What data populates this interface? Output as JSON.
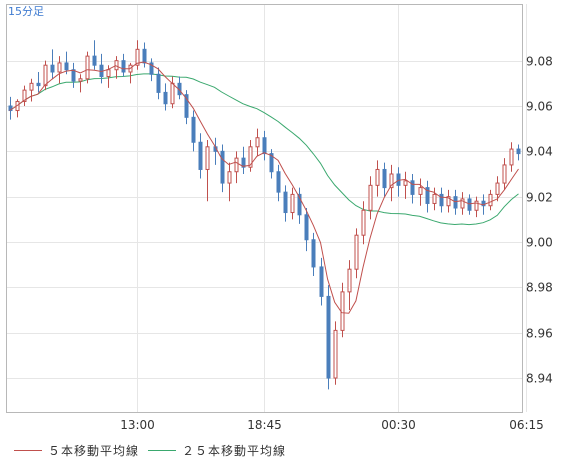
{
  "timeframe_label": "15分足",
  "colors": {
    "grid": "#e6e6e6",
    "frame": "#b8b8b8",
    "text": "#333333",
    "timeframe": "#3f7bd0",
    "up": "#ffffff",
    "up_border": "#c0504d",
    "down": "#4a7ebb",
    "ma5": "#c0504d",
    "ma25": "#3aa86e"
  },
  "chart_data": {
    "type": "candlestick",
    "ylim": [
      8.925,
      9.105
    ],
    "y_ticks": [
      "9.08",
      "9.06",
      "9.04",
      "9.02",
      "9.00",
      "8.98",
      "8.96",
      "8.94"
    ],
    "x_ticks": [
      {
        "label": "13:00",
        "index": 18
      },
      {
        "label": "18:45",
        "index": 36
      },
      {
        "label": "00:30",
        "index": 55
      },
      {
        "label": "06:15",
        "index": 73
      }
    ],
    "candles": [
      [
        9.06,
        9.064,
        9.054,
        9.058
      ],
      [
        9.058,
        9.063,
        9.055,
        9.062
      ],
      [
        9.062,
        9.069,
        9.06,
        9.067
      ],
      [
        9.067,
        9.072,
        9.062,
        9.07
      ],
      [
        9.07,
        9.075,
        9.066,
        9.069
      ],
      [
        9.069,
        9.08,
        9.067,
        9.078
      ],
      [
        9.078,
        9.085,
        9.072,
        9.075
      ],
      [
        9.075,
        9.082,
        9.07,
        9.079
      ],
      [
        9.079,
        9.084,
        9.074,
        9.076
      ],
      [
        9.076,
        9.079,
        9.068,
        9.071
      ],
      [
        9.071,
        9.074,
        9.066,
        9.072
      ],
      [
        9.072,
        9.084,
        9.07,
        9.082
      ],
      [
        9.082,
        9.089,
        9.076,
        9.078
      ],
      [
        9.078,
        9.083,
        9.07,
        9.073
      ],
      [
        9.073,
        9.078,
        9.068,
        9.076
      ],
      [
        9.076,
        9.082,
        9.072,
        9.08
      ],
      [
        9.08,
        9.083,
        9.073,
        9.075
      ],
      [
        9.075,
        9.079,
        9.07,
        9.078
      ],
      [
        9.078,
        9.089,
        9.076,
        9.085
      ],
      [
        9.085,
        9.088,
        9.077,
        9.079
      ],
      [
        9.079,
        9.081,
        9.071,
        9.074
      ],
      [
        9.074,
        9.077,
        9.063,
        9.066
      ],
      [
        9.066,
        9.07,
        9.058,
        9.061
      ],
      [
        9.061,
        9.073,
        9.059,
        9.07
      ],
      [
        9.07,
        9.073,
        9.063,
        9.065
      ],
      [
        9.065,
        9.067,
        9.052,
        9.055
      ],
      [
        9.055,
        9.058,
        9.04,
        9.044
      ],
      [
        9.044,
        9.048,
        9.028,
        9.032
      ],
      [
        9.032,
        9.045,
        9.018,
        9.042
      ],
      [
        9.042,
        9.046,
        9.034,
        9.04
      ],
      [
        9.04,
        9.043,
        9.022,
        9.026
      ],
      [
        9.026,
        9.035,
        9.018,
        9.031
      ],
      [
        9.031,
        9.04,
        9.026,
        9.037
      ],
      [
        9.037,
        9.042,
        9.03,
        9.033
      ],
      [
        9.033,
        9.045,
        9.031,
        9.042
      ],
      [
        9.042,
        9.05,
        9.038,
        9.046
      ],
      [
        9.046,
        9.049,
        9.036,
        9.039
      ],
      [
        9.039,
        9.041,
        9.028,
        9.031
      ],
      [
        9.031,
        9.034,
        9.018,
        9.022
      ],
      [
        9.022,
        9.025,
        9.009,
        9.013
      ],
      [
        9.013,
        9.024,
        9.01,
        9.021
      ],
      [
        9.021,
        9.024,
        9.008,
        9.012
      ],
      [
        9.012,
        9.015,
        8.996,
        9.001
      ],
      [
        9.001,
        9.004,
        8.985,
        8.989
      ],
      [
        8.989,
        8.993,
        8.972,
        8.976
      ],
      [
        8.976,
        8.981,
        8.935,
        8.94
      ],
      [
        8.94,
        8.965,
        8.937,
        8.961
      ],
      [
        8.961,
        8.982,
        8.958,
        8.978
      ],
      [
        8.978,
        8.992,
        8.97,
        8.988
      ],
      [
        8.988,
        9.006,
        8.984,
        9.003
      ],
      [
        9.003,
        9.018,
        8.999,
        9.014
      ],
      [
        9.014,
        9.029,
        9.01,
        9.025
      ],
      [
        9.025,
        9.036,
        9.02,
        9.032
      ],
      [
        9.032,
        9.035,
        9.02,
        9.024
      ],
      [
        9.024,
        9.034,
        9.018,
        9.03
      ],
      [
        9.03,
        9.033,
        9.02,
        9.025
      ],
      [
        9.025,
        9.031,
        9.019,
        9.027
      ],
      [
        9.027,
        9.03,
        9.017,
        9.021
      ],
      [
        9.021,
        9.028,
        9.016,
        9.024
      ],
      [
        9.024,
        9.027,
        9.013,
        9.017
      ],
      [
        9.017,
        9.024,
        9.014,
        9.021
      ],
      [
        9.021,
        9.024,
        9.013,
        9.016
      ],
      [
        9.016,
        9.023,
        9.013,
        9.02
      ],
      [
        9.02,
        9.023,
        9.012,
        9.015
      ],
      [
        9.015,
        9.022,
        9.012,
        9.019
      ],
      [
        9.019,
        9.021,
        9.012,
        9.014
      ],
      [
        9.014,
        9.02,
        9.011,
        9.018
      ],
      [
        9.018,
        9.021,
        9.012,
        9.016
      ],
      [
        9.016,
        9.023,
        9.014,
        9.021
      ],
      [
        9.021,
        9.029,
        9.018,
        9.026
      ],
      [
        9.026,
        9.037,
        9.023,
        9.034
      ],
      [
        9.034,
        9.044,
        9.031,
        9.041
      ],
      [
        9.041,
        9.043,
        9.036,
        9.039
      ]
    ],
    "series": [
      {
        "name": "５本移動平均線",
        "period": 5
      },
      {
        "name": "２５本移動平均線",
        "period": 25
      }
    ]
  }
}
